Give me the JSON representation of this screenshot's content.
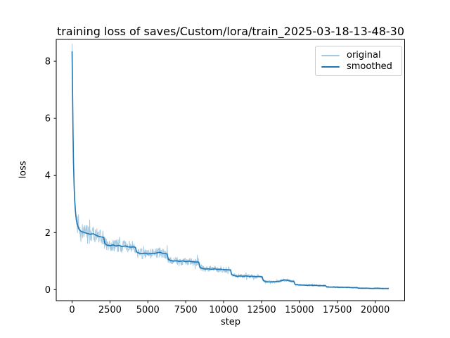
{
  "chart_data": {
    "type": "line",
    "title": "training loss of saves/Custom/lora/train_2025-03-18-13-48-30",
    "xlabel": "step",
    "ylabel": "loss",
    "xlim": [
      -1045,
      21945
    ],
    "ylim": [
      -0.386,
      8.766
    ],
    "xticks": [
      0,
      2500,
      5000,
      7500,
      10000,
      12500,
      15000,
      17500,
      20000
    ],
    "yticks": [
      0,
      2,
      4,
      6,
      8
    ],
    "grid": false,
    "legend_position": "upper right",
    "axis_color": "#000000",
    "series": [
      {
        "name": "original",
        "color": "#1f77b4",
        "opacity": 0.4,
        "line_width": 1,
        "derived": "smoothed_plus_noise",
        "noise": {
          "amp_scale": 0.135,
          "amp_offset": 0.012,
          "amp_cap": 0.28,
          "spike_prob": 0.05,
          "spike_gain": 1.9,
          "seed": 12345,
          "sample_step": 20
        }
      },
      {
        "name": "smoothed",
        "color": "#1f77b4",
        "opacity": 1.0,
        "line_width": 1.6,
        "points": [
          [
            0,
            8.35
          ],
          [
            30,
            7.0
          ],
          [
            60,
            5.6
          ],
          [
            90,
            4.5
          ],
          [
            130,
            3.7
          ],
          [
            170,
            3.15
          ],
          [
            220,
            2.75
          ],
          [
            280,
            2.45
          ],
          [
            350,
            2.28
          ],
          [
            450,
            2.12
          ],
          [
            600,
            2.04
          ],
          [
            800,
            2.0
          ],
          [
            1000,
            1.97
          ],
          [
            1200,
            1.94
          ],
          [
            1400,
            1.96
          ],
          [
            1600,
            1.9
          ],
          [
            1800,
            1.86
          ],
          [
            2000,
            1.84
          ],
          [
            2090,
            1.82
          ],
          [
            2160,
            1.62
          ],
          [
            2300,
            1.56
          ],
          [
            2500,
            1.54
          ],
          [
            2700,
            1.57
          ],
          [
            2900,
            1.53
          ],
          [
            3100,
            1.55
          ],
          [
            3300,
            1.51
          ],
          [
            3500,
            1.53
          ],
          [
            3700,
            1.5
          ],
          [
            3900,
            1.49
          ],
          [
            4100,
            1.5
          ],
          [
            4180,
            1.48
          ],
          [
            4260,
            1.32
          ],
          [
            4400,
            1.28
          ],
          [
            4600,
            1.26
          ],
          [
            4800,
            1.28
          ],
          [
            5000,
            1.25
          ],
          [
            5200,
            1.27
          ],
          [
            5400,
            1.26
          ],
          [
            5600,
            1.29
          ],
          [
            5800,
            1.31
          ],
          [
            6000,
            1.27
          ],
          [
            6200,
            1.26
          ],
          [
            6270,
            1.25
          ],
          [
            6350,
            1.06
          ],
          [
            6500,
            1.02
          ],
          [
            6700,
            1.0
          ],
          [
            6900,
            1.01
          ],
          [
            7100,
            0.99
          ],
          [
            7300,
            1.01
          ],
          [
            7500,
            0.98
          ],
          [
            7700,
            1.0
          ],
          [
            7900,
            0.98
          ],
          [
            8100,
            0.97
          ],
          [
            8300,
            0.97
          ],
          [
            8360,
            0.96
          ],
          [
            8440,
            0.78
          ],
          [
            8600,
            0.74
          ],
          [
            8800,
            0.72
          ],
          [
            9000,
            0.73
          ],
          [
            9200,
            0.71
          ],
          [
            9400,
            0.73
          ],
          [
            9600,
            0.71
          ],
          [
            9800,
            0.72
          ],
          [
            10000,
            0.7
          ],
          [
            10200,
            0.7
          ],
          [
            10450,
            0.69
          ],
          [
            10530,
            0.53
          ],
          [
            10700,
            0.49
          ],
          [
            10900,
            0.47
          ],
          [
            11100,
            0.48
          ],
          [
            11300,
            0.47
          ],
          [
            11500,
            0.48
          ],
          [
            11700,
            0.46
          ],
          [
            11900,
            0.47
          ],
          [
            12100,
            0.46
          ],
          [
            12300,
            0.46
          ],
          [
            12540,
            0.45
          ],
          [
            12620,
            0.32
          ],
          [
            12800,
            0.28
          ],
          [
            13000,
            0.27
          ],
          [
            13200,
            0.28
          ],
          [
            13400,
            0.28
          ],
          [
            13600,
            0.29
          ],
          [
            13800,
            0.31
          ],
          [
            14000,
            0.34
          ],
          [
            14200,
            0.33
          ],
          [
            14400,
            0.3
          ],
          [
            14630,
            0.29
          ],
          [
            14710,
            0.19
          ],
          [
            14900,
            0.17
          ],
          [
            15100,
            0.16
          ],
          [
            15300,
            0.16
          ],
          [
            15500,
            0.15
          ],
          [
            15700,
            0.16
          ],
          [
            15900,
            0.15
          ],
          [
            16100,
            0.15
          ],
          [
            16300,
            0.14
          ],
          [
            16500,
            0.14
          ],
          [
            16720,
            0.14
          ],
          [
            16800,
            0.1
          ],
          [
            17000,
            0.09
          ],
          [
            17300,
            0.09
          ],
          [
            17600,
            0.08
          ],
          [
            17900,
            0.08
          ],
          [
            18200,
            0.08
          ],
          [
            18500,
            0.07
          ],
          [
            18810,
            0.07
          ],
          [
            18900,
            0.05
          ],
          [
            19200,
            0.05
          ],
          [
            19500,
            0.05
          ],
          [
            19800,
            0.04
          ],
          [
            20100,
            0.05
          ],
          [
            20400,
            0.04
          ],
          [
            20900,
            0.04
          ]
        ]
      }
    ]
  }
}
